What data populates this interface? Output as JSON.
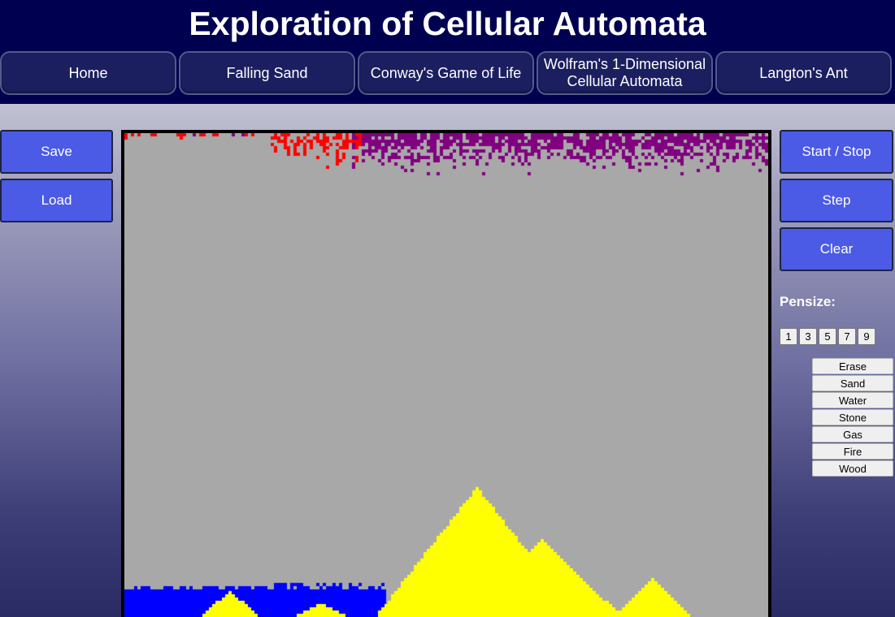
{
  "header": {
    "title": "Exploration of Cellular Automata",
    "nav": [
      {
        "label": "Home"
      },
      {
        "label": "Falling Sand"
      },
      {
        "label": "Conway's Game of Life"
      },
      {
        "label": "Wolfram's 1-Dimensional Cellular Automata"
      },
      {
        "label": "Langton's Ant"
      }
    ]
  },
  "left_controls": {
    "save_label": "Save",
    "load_label": "Load"
  },
  "right_controls": {
    "start_stop_label": "Start / Stop",
    "step_label": "Step",
    "clear_label": "Clear",
    "pensize_label": "Pensize:",
    "pensizes": [
      "1",
      "3",
      "5",
      "7",
      "9"
    ],
    "materials": [
      "Erase",
      "Sand",
      "Water",
      "Stone",
      "Gas",
      "Fire",
      "Wood"
    ]
  },
  "colors": {
    "header_bg": "#000050",
    "nav_bg": "#1b1f60",
    "button_bg": "#4b5be6",
    "canvas_bg": "#a8a8a8",
    "sand": "#ffff00",
    "water": "#0000ff",
    "fire": "#ff0000",
    "gas": "#800080"
  }
}
